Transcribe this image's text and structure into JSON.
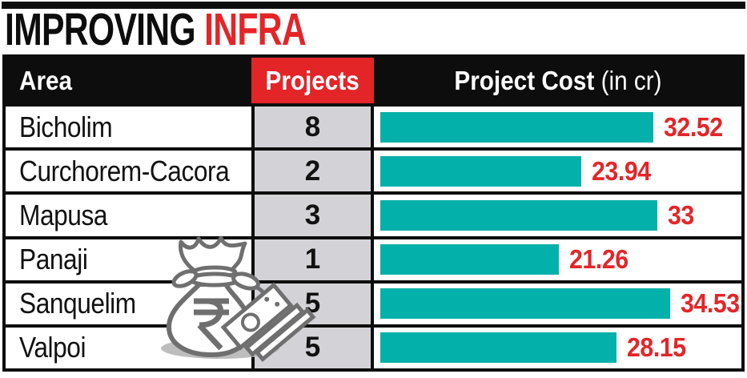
{
  "title": {
    "part_black": "IMPROVING",
    "part_red": "INFRA"
  },
  "header": {
    "area": "Area",
    "projects": "Projects",
    "cost_bold": "Project Cost",
    "cost_unit": "(in cr)"
  },
  "icons": {
    "rupee_symbol": "₹",
    "money_bag": "money-bag-icon",
    "banknotes": "banknotes-icon"
  },
  "colors": {
    "bar_teal": "#04b1aa",
    "accent_red": "#e42528",
    "header_black": "#0d0d0d",
    "projects_column_gray": "#d3d3d7",
    "illustration_gray": "#6f6f6f"
  },
  "chart_data": {
    "type": "bar",
    "orientation": "horizontal",
    "title": "IMPROVING INFRA",
    "categories": [
      "Bicholim",
      "Curchorem-Cacora",
      "Mapusa",
      "Panaji",
      "Sanquelim",
      "Valpoi"
    ],
    "series": [
      {
        "name": "Projects",
        "values": [
          8,
          2,
          3,
          1,
          5,
          5
        ]
      },
      {
        "name": "Project Cost (in cr)",
        "values": [
          32.52,
          23.94,
          33,
          21.26,
          34.53,
          28.15
        ]
      }
    ],
    "xlim": [
      0,
      43
    ],
    "value_labels_shown": true,
    "grid": false,
    "legend": "none"
  }
}
